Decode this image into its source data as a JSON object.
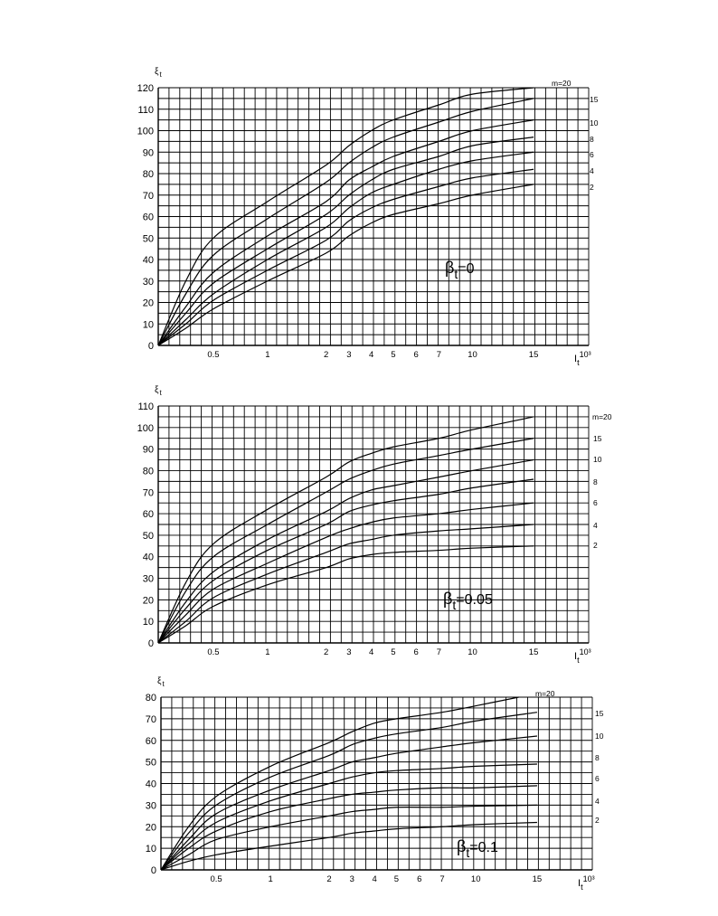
{
  "chart_data": [
    {
      "type": "line",
      "ylabel": "ξ",
      "ylabel_sub": "t",
      "xlabel": "I",
      "xlabel_sub": "t",
      "xlabel_sup": "10³",
      "annotation": "β",
      "annotation_sub": "t",
      "annotation_value": "=0",
      "ylim": [
        0,
        120
      ],
      "yticks": [
        "0",
        "10",
        "20",
        "30",
        "40",
        "50",
        "60",
        "70",
        "80",
        "90",
        "100",
        "110",
        "120"
      ],
      "xticks": [
        {
          "label": "0.5",
          "value": 0.5
        },
        {
          "label": "1",
          "value": 1
        },
        {
          "label": "2",
          "value": 2
        },
        {
          "label": "3",
          "value": 3
        },
        {
          "label": "4",
          "value": 4
        },
        {
          "label": "5",
          "value": 5
        },
        {
          "label": "6",
          "value": 6
        },
        {
          "label": "7",
          "value": 7
        },
        {
          "label": "10",
          "value": 10
        },
        {
          "label": "15",
          "value": 15
        }
      ],
      "series": [
        {
          "name": "m=20",
          "points": [
            [
              0,
              0
            ],
            [
              0.25,
              30
            ],
            [
              0.5,
              50
            ],
            [
              1,
              67
            ],
            [
              2,
              84
            ],
            [
              3,
              93
            ],
            [
              4,
              100
            ],
            [
              5,
              105
            ],
            [
              7,
              112
            ],
            [
              10,
              117
            ],
            [
              15,
              120
            ]
          ]
        },
        {
          "name": "15",
          "points": [
            [
              0,
              0
            ],
            [
              0.25,
              24
            ],
            [
              0.5,
              42
            ],
            [
              1,
              59
            ],
            [
              2,
              76
            ],
            [
              3,
              85
            ],
            [
              4,
              92
            ],
            [
              5,
              97
            ],
            [
              7,
              104
            ],
            [
              10,
              109
            ],
            [
              15,
              115
            ]
          ]
        },
        {
          "name": "10",
          "points": [
            [
              0,
              0
            ],
            [
              0.25,
              18
            ],
            [
              0.5,
              34
            ],
            [
              1,
              51
            ],
            [
              2,
              67
            ],
            [
              3,
              77
            ],
            [
              4,
              83
            ],
            [
              5,
              88
            ],
            [
              7,
              95
            ],
            [
              10,
              100
            ],
            [
              15,
              105
            ]
          ]
        },
        {
          "name": "8",
          "points": [
            [
              0,
              0
            ],
            [
              0.25,
              15
            ],
            [
              0.5,
              29
            ],
            [
              1,
              45
            ],
            [
              2,
              61
            ],
            [
              3,
              70
            ],
            [
              4,
              77
            ],
            [
              5,
              82
            ],
            [
              7,
              88
            ],
            [
              10,
              93
            ],
            [
              15,
              97
            ]
          ]
        },
        {
          "name": "6",
          "points": [
            [
              0,
              0
            ],
            [
              0.25,
              12
            ],
            [
              0.5,
              24
            ],
            [
              1,
              40
            ],
            [
              2,
              55
            ],
            [
              3,
              64
            ],
            [
              4,
              71
            ],
            [
              5,
              75
            ],
            [
              7,
              82
            ],
            [
              10,
              86
            ],
            [
              15,
              90
            ]
          ]
        },
        {
          "name": "4",
          "points": [
            [
              0,
              0
            ],
            [
              0.25,
              10
            ],
            [
              0.5,
              21
            ],
            [
              1,
              35
            ],
            [
              2,
              49
            ],
            [
              3,
              58
            ],
            [
              4,
              64
            ],
            [
              5,
              68
            ],
            [
              7,
              74
            ],
            [
              10,
              78
            ],
            [
              15,
              82
            ]
          ]
        },
        {
          "name": "2",
          "points": [
            [
              0,
              0
            ],
            [
              0.25,
              8
            ],
            [
              0.5,
              17
            ],
            [
              1,
              30
            ],
            [
              2,
              43
            ],
            [
              3,
              51
            ],
            [
              4,
              57
            ],
            [
              5,
              61
            ],
            [
              7,
              66
            ],
            [
              10,
              70
            ],
            [
              15,
              75
            ]
          ]
        }
      ]
    },
    {
      "type": "line",
      "ylabel": "ξ",
      "ylabel_sub": "t",
      "xlabel": "I",
      "xlabel_sub": "t",
      "xlabel_sup": "10³",
      "annotation": "β",
      "annotation_sub": "t",
      "annotation_value": "=0.05",
      "ylim": [
        0,
        110
      ],
      "yticks": [
        "0",
        "10",
        "20",
        "30",
        "40",
        "50",
        "60",
        "70",
        "80",
        "90",
        "100",
        "110"
      ],
      "xticks": [
        {
          "label": "0.5",
          "value": 0.5
        },
        {
          "label": "1",
          "value": 1
        },
        {
          "label": "2",
          "value": 2
        },
        {
          "label": "3",
          "value": 3
        },
        {
          "label": "4",
          "value": 4
        },
        {
          "label": "5",
          "value": 5
        },
        {
          "label": "6",
          "value": 6
        },
        {
          "label": "7",
          "value": 7
        },
        {
          "label": "10",
          "value": 10
        },
        {
          "label": "15",
          "value": 15
        }
      ],
      "series": [
        {
          "name": "m=20",
          "points": [
            [
              0,
              0
            ],
            [
              0.25,
              28
            ],
            [
              0.5,
              46
            ],
            [
              1,
              62
            ],
            [
              2,
              77
            ],
            [
              3,
              84
            ],
            [
              4,
              88
            ],
            [
              5,
              91
            ],
            [
              7,
              95
            ],
            [
              10,
              99
            ],
            [
              15,
              105
            ]
          ]
        },
        {
          "name": "15",
          "points": [
            [
              0,
              0
            ],
            [
              0.25,
              24
            ],
            [
              0.5,
              40
            ],
            [
              1,
              55
            ],
            [
              2,
              70
            ],
            [
              3,
              76
            ],
            [
              4,
              80
            ],
            [
              5,
              83
            ],
            [
              7,
              87
            ],
            [
              10,
              90
            ],
            [
              15,
              95
            ]
          ]
        },
        {
          "name": "10",
          "points": [
            [
              0,
              0
            ],
            [
              0.25,
              19
            ],
            [
              0.5,
              33
            ],
            [
              1,
              48
            ],
            [
              2,
              61
            ],
            [
              3,
              67
            ],
            [
              4,
              71
            ],
            [
              5,
              73
            ],
            [
              7,
              77
            ],
            [
              10,
              80
            ],
            [
              15,
              85
            ]
          ]
        },
        {
          "name": "8",
          "points": [
            [
              0,
              0
            ],
            [
              0.25,
              16
            ],
            [
              0.5,
              29
            ],
            [
              1,
              43
            ],
            [
              2,
              55
            ],
            [
              3,
              61
            ],
            [
              4,
              64
            ],
            [
              5,
              66
            ],
            [
              7,
              69
            ],
            [
              10,
              72
            ],
            [
              15,
              76
            ]
          ]
        },
        {
          "name": "6",
          "points": [
            [
              0,
              0
            ],
            [
              0.25,
              13
            ],
            [
              0.5,
              25
            ],
            [
              1,
              37
            ],
            [
              2,
              49
            ],
            [
              3,
              53
            ],
            [
              4,
              56
            ],
            [
              5,
              58
            ],
            [
              7,
              60
            ],
            [
              10,
              62
            ],
            [
              15,
              65
            ]
          ]
        },
        {
          "name": "4",
          "points": [
            [
              0,
              0
            ],
            [
              0.25,
              10
            ],
            [
              0.5,
              21
            ],
            [
              1,
              32
            ],
            [
              2,
              42
            ],
            [
              3,
              46
            ],
            [
              4,
              48
            ],
            [
              5,
              50
            ],
            [
              7,
              52
            ],
            [
              10,
              53
            ],
            [
              15,
              55
            ]
          ]
        },
        {
          "name": "2",
          "points": [
            [
              0,
              0
            ],
            [
              0.25,
              8
            ],
            [
              0.5,
              17
            ],
            [
              1,
              27
            ],
            [
              2,
              35
            ],
            [
              3,
              39
            ],
            [
              4,
              41
            ],
            [
              5,
              42
            ],
            [
              7,
              43
            ],
            [
              10,
              44
            ],
            [
              15,
              45
            ]
          ]
        }
      ]
    },
    {
      "type": "line",
      "ylabel": "ξ",
      "ylabel_sub": "t",
      "xlabel": "I",
      "xlabel_sub": "t",
      "xlabel_sup": "10³",
      "annotation": "β",
      "annotation_sub": "t",
      "annotation_value": "=0.1",
      "ylim": [
        0,
        80
      ],
      "yticks": [
        "0",
        "10",
        "20",
        "30",
        "40",
        "50",
        "60",
        "70",
        "80"
      ],
      "xticks": [
        {
          "label": "0.5",
          "value": 0.5
        },
        {
          "label": "1",
          "value": 1
        },
        {
          "label": "2",
          "value": 2
        },
        {
          "label": "3",
          "value": 3
        },
        {
          "label": "4",
          "value": 4
        },
        {
          "label": "5",
          "value": 5
        },
        {
          "label": "6",
          "value": 6
        },
        {
          "label": "7",
          "value": 7
        },
        {
          "label": "10",
          "value": 10
        },
        {
          "label": "15",
          "value": 15
        }
      ],
      "series": [
        {
          "name": "m=20",
          "points": [
            [
              0,
              0
            ],
            [
              0.25,
              20
            ],
            [
              0.5,
              34
            ],
            [
              1,
              48
            ],
            [
              2,
              59
            ],
            [
              3,
              64
            ],
            [
              4,
              68
            ],
            [
              5,
              70
            ],
            [
              7,
              73
            ],
            [
              10,
              76
            ],
            [
              13.5,
              80
            ]
          ]
        },
        {
          "name": "15",
          "points": [
            [
              0,
              0
            ],
            [
              0.25,
              17
            ],
            [
              0.5,
              30
            ],
            [
              1,
              43
            ],
            [
              2,
              53
            ],
            [
              3,
              58
            ],
            [
              4,
              61
            ],
            [
              5,
              63
            ],
            [
              7,
              66
            ],
            [
              10,
              69
            ],
            [
              15,
              73
            ]
          ]
        },
        {
          "name": "10",
          "points": [
            [
              0,
              0
            ],
            [
              0.25,
              14
            ],
            [
              0.5,
              26
            ],
            [
              1,
              37
            ],
            [
              2,
              46
            ],
            [
              3,
              50
            ],
            [
              4,
              52
            ],
            [
              5,
              54
            ],
            [
              7,
              57
            ],
            [
              10,
              59
            ],
            [
              15,
              62
            ]
          ]
        },
        {
          "name": "8",
          "points": [
            [
              0,
              0
            ],
            [
              0.25,
              12
            ],
            [
              0.5,
              22
            ],
            [
              1,
              32
            ],
            [
              2,
              40
            ],
            [
              3,
              43
            ],
            [
              4,
              45
            ],
            [
              5,
              46
            ],
            [
              7,
              47
            ],
            [
              10,
              48
            ],
            [
              15,
              49
            ]
          ]
        },
        {
          "name": "6",
          "points": [
            [
              0,
              0
            ],
            [
              0.25,
              10
            ],
            [
              0.5,
              18
            ],
            [
              1,
              27
            ],
            [
              2,
              33
            ],
            [
              3,
              35
            ],
            [
              4,
              36
            ],
            [
              5,
              37
            ],
            [
              7,
              38
            ],
            [
              10,
              38
            ],
            [
              15,
              39
            ]
          ]
        },
        {
          "name": "4",
          "points": [
            [
              0,
              0
            ],
            [
              0.25,
              7
            ],
            [
              0.5,
              14
            ],
            [
              1,
              20
            ],
            [
              2,
              25
            ],
            [
              3,
              27
            ],
            [
              4,
              28
            ],
            [
              5,
              29
            ],
            [
              7,
              29
            ],
            [
              10,
              29.5
            ],
            [
              15,
              30
            ]
          ]
        },
        {
          "name": "2",
          "points": [
            [
              0,
              0
            ],
            [
              0.25,
              4
            ],
            [
              0.5,
              7
            ],
            [
              1,
              11
            ],
            [
              2,
              15
            ],
            [
              3,
              17
            ],
            [
              4,
              18
            ],
            [
              5,
              19
            ],
            [
              7,
              20
            ],
            [
              10,
              21
            ],
            [
              15,
              22
            ]
          ]
        }
      ]
    }
  ]
}
